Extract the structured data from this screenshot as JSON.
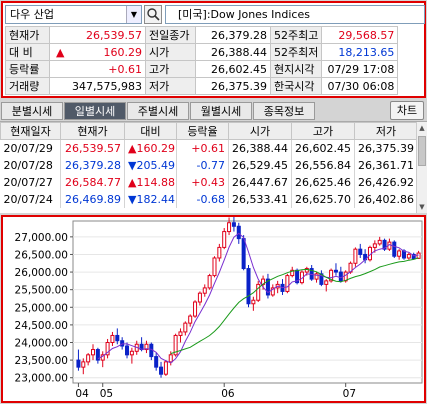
{
  "stock": {
    "name": "다우 산업",
    "title": "[미국]:Dow Jones Indices"
  },
  "quote": {
    "rows": [
      {
        "l1": "현재가",
        "v1": "26,539.57",
        "c1": "red",
        "l2": "전일종가",
        "v2": "26,379.28",
        "c2": "",
        "l3": "52주최고",
        "v3": "29,568.57",
        "c3": "red"
      },
      {
        "l1": "대  비",
        "v1": "160.29",
        "c1": "red",
        "arrow": "▲",
        "l2": "시가",
        "v2": "26,388.44",
        "c2": "",
        "l3": "52주최저",
        "v3": "18,213.65",
        "c3": "blue"
      },
      {
        "l1": "등락률",
        "v1": "+0.61",
        "c1": "red",
        "l2": "고가",
        "v2": "26,602.45",
        "c2": "",
        "l3": "현지시각",
        "v3": "07/29 17:08",
        "c3": ""
      },
      {
        "l1": "거래량",
        "v1": "347,575,983",
        "c1": "",
        "l2": "저가",
        "v2": "26,375.39",
        "c2": "",
        "l3": "한국시각",
        "v3": "07/30 06:08",
        "c3": ""
      }
    ]
  },
  "tabs": [
    "분별시세",
    "일별시세",
    "주별시세",
    "월별시세",
    "종목정보"
  ],
  "active_tab": 1,
  "chart_button": "차트",
  "daily": {
    "headers": [
      "현재일자",
      "현재가",
      "대비",
      "등락율",
      "시가",
      "고가",
      "저가"
    ],
    "rows": [
      {
        "date": "20/07/29",
        "price": "26,539.57",
        "arrow": "▲",
        "change": "160.29",
        "rate": "+0.61",
        "open": "26,388.44",
        "high": "26,602.45",
        "low": "26,375.39",
        "dir": "up"
      },
      {
        "date": "20/07/28",
        "price": "26,379.28",
        "arrow": "▼",
        "change": "205.49",
        "rate": "-0.77",
        "open": "26,529.45",
        "high": "26,556.84",
        "low": "26,361.71",
        "dir": "down"
      },
      {
        "date": "20/07/27",
        "price": "26,584.77",
        "arrow": "▲",
        "change": "114.88",
        "rate": "+0.43",
        "open": "26,447.67",
        "high": "26,625.46",
        "low": "26,426.92",
        "dir": "up"
      },
      {
        "date": "20/07/24",
        "price": "26,469.89",
        "arrow": "▼",
        "change": "182.44",
        "rate": "-0.68",
        "open": "26,533.41",
        "high": "26,625.70",
        "low": "26,402.86",
        "dir": "down"
      }
    ]
  },
  "chart_data": {
    "type": "candlestick",
    "yticks": [
      "27,000.00",
      "26,500.00",
      "26,000.00",
      "25,500.00",
      "25,000.00",
      "24,500.00",
      "24,000.00",
      "23,500.00",
      "23,000.00"
    ],
    "ylim": [
      22850,
      27450
    ],
    "xticks": [
      {
        "label": "04",
        "i": 0
      },
      {
        "label": "05",
        "i": 5
      },
      {
        "label": "06",
        "i": 30
      },
      {
        "label": "07",
        "i": 55
      }
    ],
    "ma_colors": {
      "short": "#7a2fd0",
      "long": "#1a9a1a"
    },
    "up_color": "#e0001a",
    "down_color": "#0a22c8",
    "candles": [
      [
        23500,
        23800,
        23200,
        23300
      ],
      [
        23300,
        23550,
        23100,
        23450
      ],
      [
        23450,
        23700,
        23350,
        23650
      ],
      [
        23650,
        23950,
        23500,
        23800
      ],
      [
        23800,
        23850,
        23400,
        23500
      ],
      [
        23500,
        23750,
        23300,
        23650
      ],
      [
        23650,
        24100,
        23550,
        24000
      ],
      [
        24000,
        24300,
        23900,
        24200
      ],
      [
        24200,
        24400,
        23950,
        24050
      ],
      [
        24050,
        24150,
        23800,
        23900
      ],
      [
        23900,
        24000,
        23550,
        23650
      ],
      [
        23650,
        23850,
        23400,
        23750
      ],
      [
        23750,
        24050,
        23650,
        23950
      ],
      [
        23950,
        24150,
        23750,
        23800
      ],
      [
        23800,
        24050,
        23700,
        23950
      ],
      [
        23950,
        24000,
        23500,
        23600
      ],
      [
        23600,
        23700,
        23200,
        23300
      ],
      [
        23300,
        23450,
        23000,
        23100
      ],
      [
        23100,
        23500,
        23050,
        23450
      ],
      [
        23450,
        23750,
        23350,
        23650
      ],
      [
        23650,
        24250,
        23600,
        24200
      ],
      [
        24200,
        24400,
        24000,
        24300
      ],
      [
        24300,
        24600,
        24200,
        24550
      ],
      [
        24550,
        24800,
        24450,
        24750
      ],
      [
        24750,
        25200,
        24700,
        25150
      ],
      [
        25150,
        25450,
        25050,
        25400
      ],
      [
        25400,
        25650,
        25300,
        25550
      ],
      [
        25550,
        25950,
        25500,
        25900
      ],
      [
        25900,
        26450,
        25850,
        26400
      ],
      [
        26400,
        26800,
        26300,
        26700
      ],
      [
        26700,
        27250,
        26650,
        27150
      ],
      [
        27150,
        27550,
        27050,
        27400
      ],
      [
        27400,
        27600,
        27150,
        27300
      ],
      [
        27300,
        27400,
        26800,
        26950
      ],
      [
        26950,
        27050,
        26050,
        26100
      ],
      [
        26100,
        26200,
        25000,
        25100
      ],
      [
        25100,
        25300,
        24900,
        25200
      ],
      [
        25200,
        25750,
        25150,
        25650
      ],
      [
        25650,
        25900,
        25500,
        25800
      ],
      [
        25800,
        25950,
        25250,
        25350
      ],
      [
        25350,
        25650,
        25300,
        25550
      ],
      [
        25550,
        25750,
        25400,
        25650
      ],
      [
        25650,
        25800,
        25350,
        25450
      ],
      [
        25450,
        25950,
        25400,
        25900
      ],
      [
        25900,
        26150,
        25850,
        26050
      ],
      [
        26050,
        26100,
        25650,
        25700
      ],
      [
        25700,
        26050,
        25650,
        26000
      ],
      [
        26000,
        26150,
        25900,
        26100
      ],
      [
        26100,
        26200,
        25750,
        25800
      ],
      [
        25800,
        26000,
        25700,
        25950
      ],
      [
        25950,
        26050,
        25600,
        25650
      ],
      [
        25650,
        25800,
        25450,
        25750
      ],
      [
        25750,
        26100,
        25700,
        26050
      ],
      [
        26050,
        26250,
        25900,
        26000
      ],
      [
        26000,
        26150,
        25700,
        25750
      ],
      [
        25750,
        26050,
        25700,
        26000
      ],
      [
        26000,
        26300,
        25950,
        26250
      ],
      [
        26250,
        26700,
        26150,
        26650
      ],
      [
        26650,
        26800,
        26400,
        26500
      ],
      [
        26500,
        26650,
        26250,
        26350
      ],
      [
        26350,
        26750,
        26300,
        26700
      ],
      [
        26700,
        26900,
        26550,
        26800
      ],
      [
        26800,
        27000,
        26750,
        26900
      ],
      [
        26900,
        26950,
        26600,
        26650
      ],
      [
        26650,
        26950,
        26600,
        26850
      ],
      [
        26850,
        26900,
        26400,
        26450
      ],
      [
        26450,
        26650,
        26350,
        26600
      ],
      [
        26600,
        26650,
        26350,
        26400
      ],
      [
        26400,
        26550,
        26350,
        26500
      ],
      [
        26500,
        26550,
        26350,
        26380
      ],
      [
        26388,
        26602,
        26375,
        26540
      ]
    ]
  }
}
